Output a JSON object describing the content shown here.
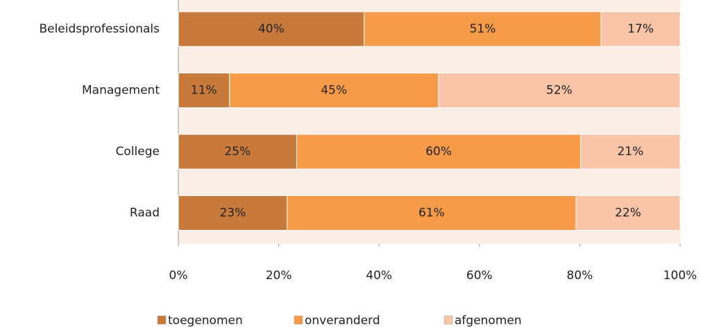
{
  "chart_data": {
    "type": "bar",
    "orientation": "horizontal",
    "stacking": "percent",
    "categories": [
      "Beleidsprofessionals",
      "Management",
      "College",
      "Raad"
    ],
    "series": [
      {
        "name": "toegenomen",
        "color": "#c77a3c",
        "values": [
          40,
          11,
          25,
          23
        ],
        "value_labels": [
          "40%",
          "11%",
          "25%",
          "23%"
        ]
      },
      {
        "name": "onveranderd",
        "color": "#f79b4a",
        "values": [
          51,
          45,
          60,
          61
        ],
        "value_labels": [
          "51%",
          "45%",
          "60%",
          "61%"
        ]
      },
      {
        "name": "afgenomen",
        "color": "#f9c4a8",
        "values": [
          17,
          52,
          21,
          22
        ],
        "value_labels": [
          "17%",
          "52%",
          "21%",
          "22%"
        ]
      }
    ],
    "xlim": [
      0,
      100
    ],
    "xticks": [
      {
        "value": 0,
        "label": "0%"
      },
      {
        "value": 20,
        "label": "20%"
      },
      {
        "value": 40,
        "label": "40%"
      },
      {
        "value": 60,
        "label": "60%"
      },
      {
        "value": 80,
        "label": "80%"
      },
      {
        "value": 100,
        "label": "100%"
      }
    ],
    "legend": "bottom"
  }
}
